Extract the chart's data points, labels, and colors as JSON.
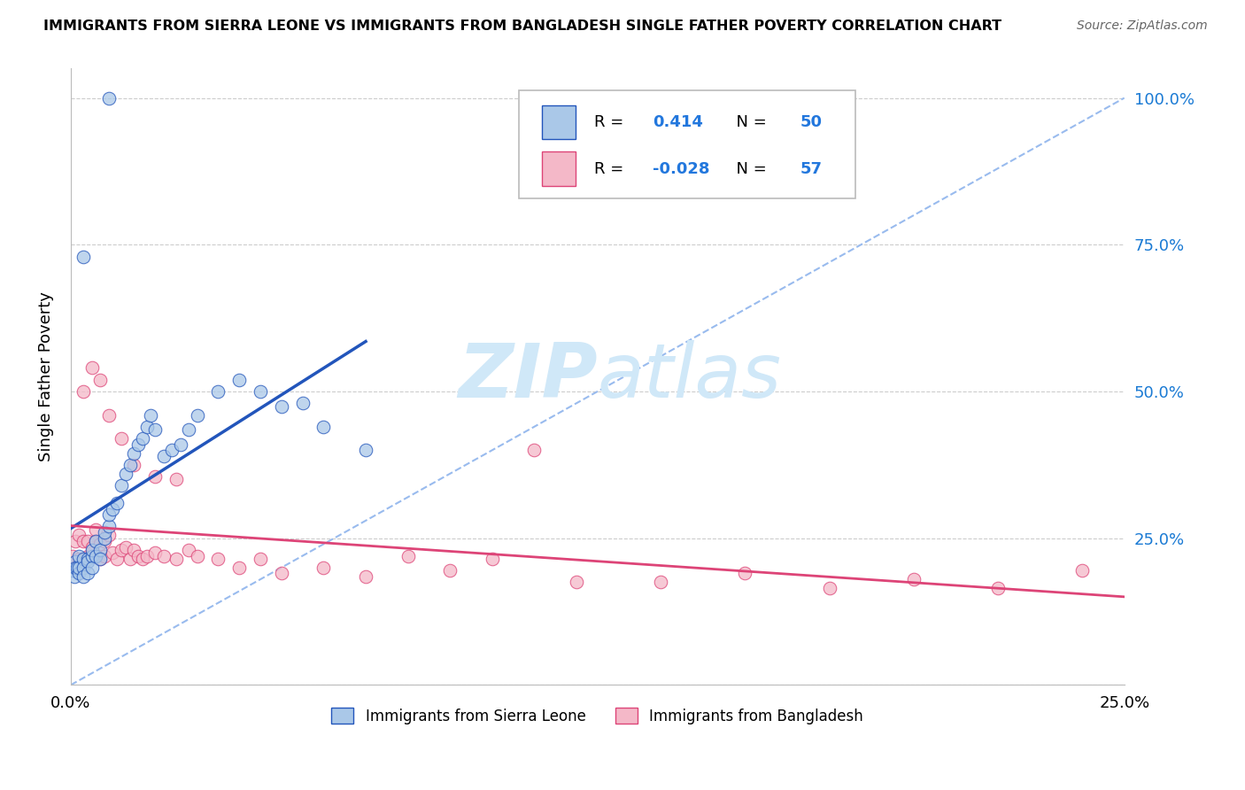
{
  "title": "IMMIGRANTS FROM SIERRA LEONE VS IMMIGRANTS FROM BANGLADESH SINGLE FATHER POVERTY CORRELATION CHART",
  "source": "Source: ZipAtlas.com",
  "ylabel": "Single Father Poverty",
  "legend1_label": "Immigrants from Sierra Leone",
  "legend2_label": "Immigrants from Bangladesh",
  "R1": 0.414,
  "N1": 50,
  "R2": -0.028,
  "N2": 57,
  "color1": "#aac8e8",
  "color2": "#f4b8c8",
  "line1_color": "#2255bb",
  "line2_color": "#dd4477",
  "dash_color": "#99bbee",
  "watermark_color": "#d0e8f8",
  "xlim": [
    0.0,
    0.25
  ],
  "ylim": [
    0.0,
    1.05
  ],
  "sl_x": [
    0.0005,
    0.0008,
    0.001,
    0.001,
    0.0015,
    0.002,
    0.002,
    0.002,
    0.003,
    0.003,
    0.003,
    0.004,
    0.004,
    0.004,
    0.005,
    0.005,
    0.005,
    0.006,
    0.006,
    0.007,
    0.007,
    0.008,
    0.008,
    0.009,
    0.009,
    0.01,
    0.011,
    0.012,
    0.013,
    0.014,
    0.015,
    0.016,
    0.017,
    0.018,
    0.019,
    0.02,
    0.022,
    0.024,
    0.026,
    0.028,
    0.03,
    0.035,
    0.04,
    0.045,
    0.05,
    0.055,
    0.06,
    0.07,
    0.009,
    0.003
  ],
  "sl_y": [
    0.195,
    0.185,
    0.21,
    0.2,
    0.2,
    0.19,
    0.22,
    0.2,
    0.215,
    0.2,
    0.185,
    0.215,
    0.21,
    0.19,
    0.22,
    0.2,
    0.23,
    0.22,
    0.245,
    0.23,
    0.215,
    0.25,
    0.26,
    0.27,
    0.29,
    0.3,
    0.31,
    0.34,
    0.36,
    0.375,
    0.395,
    0.41,
    0.42,
    0.44,
    0.46,
    0.435,
    0.39,
    0.4,
    0.41,
    0.435,
    0.46,
    0.5,
    0.52,
    0.5,
    0.475,
    0.48,
    0.44,
    0.4,
    1.0,
    0.73
  ],
  "bd_x": [
    0.0005,
    0.001,
    0.001,
    0.002,
    0.002,
    0.003,
    0.003,
    0.004,
    0.004,
    0.005,
    0.005,
    0.006,
    0.006,
    0.007,
    0.007,
    0.008,
    0.008,
    0.009,
    0.01,
    0.011,
    0.012,
    0.013,
    0.014,
    0.015,
    0.016,
    0.017,
    0.018,
    0.02,
    0.022,
    0.025,
    0.028,
    0.03,
    0.035,
    0.04,
    0.045,
    0.05,
    0.06,
    0.07,
    0.08,
    0.09,
    0.1,
    0.11,
    0.12,
    0.14,
    0.16,
    0.18,
    0.2,
    0.22,
    0.24,
    0.003,
    0.005,
    0.007,
    0.009,
    0.012,
    0.015,
    0.02,
    0.025
  ],
  "bd_y": [
    0.22,
    0.2,
    0.245,
    0.255,
    0.215,
    0.245,
    0.215,
    0.22,
    0.245,
    0.225,
    0.235,
    0.245,
    0.265,
    0.24,
    0.215,
    0.22,
    0.245,
    0.255,
    0.225,
    0.215,
    0.23,
    0.235,
    0.215,
    0.23,
    0.22,
    0.215,
    0.22,
    0.225,
    0.22,
    0.215,
    0.23,
    0.22,
    0.215,
    0.2,
    0.215,
    0.19,
    0.2,
    0.185,
    0.22,
    0.195,
    0.215,
    0.4,
    0.175,
    0.175,
    0.19,
    0.165,
    0.18,
    0.165,
    0.195,
    0.5,
    0.54,
    0.52,
    0.46,
    0.42,
    0.375,
    0.355,
    0.35
  ]
}
